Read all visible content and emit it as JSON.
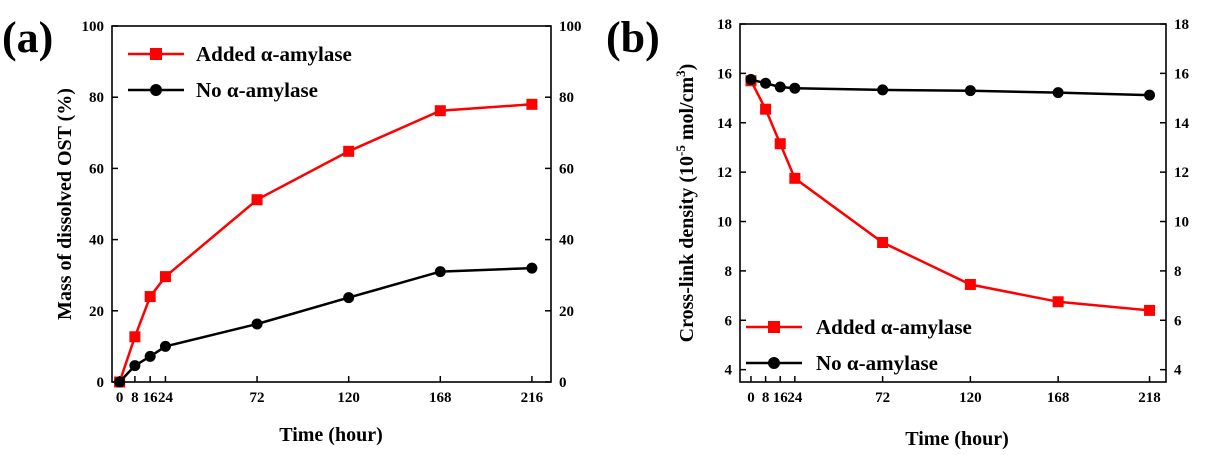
{
  "figure": {
    "panels": [
      "(a)",
      "(b)"
    ]
  },
  "chart_data": [
    {
      "panel": "(a)",
      "type": "line",
      "x": [
        0,
        8,
        16,
        24,
        72,
        120,
        168,
        216
      ],
      "xticks": [
        0,
        8,
        16,
        24,
        72,
        120,
        168,
        216
      ],
      "xlim": [
        -4,
        226
      ],
      "ylim": [
        0,
        100
      ],
      "yticks": [
        0,
        20,
        40,
        60,
        80,
        100
      ],
      "right_yticks": [
        0,
        20,
        40,
        60,
        80,
        100
      ],
      "xlabel": "Time (hour)",
      "ylabel": "Mass of dissolved OST (%)",
      "legend_position": "top-left",
      "grid": false,
      "series": [
        {
          "name": "Added α-amylase",
          "color": "#ff0000",
          "marker": "square",
          "values": [
            0,
            12.7,
            24.0,
            29.6,
            51.2,
            64.8,
            76.2,
            78.0
          ]
        },
        {
          "name": "No α-amylase",
          "color": "#000000",
          "marker": "circle",
          "values": [
            0,
            4.6,
            7.2,
            10.0,
            16.3,
            23.7,
            31.0,
            32.0
          ]
        }
      ]
    },
    {
      "panel": "(b)",
      "type": "line",
      "x": [
        0,
        8,
        16,
        24,
        72,
        120,
        168,
        218
      ],
      "xticks": [
        0,
        8,
        16,
        24,
        72,
        120,
        168,
        218
      ],
      "xlim": [
        -6,
        227
      ],
      "ylim": [
        3.5,
        18
      ],
      "yticks": [
        4,
        6,
        8,
        10,
        12,
        14,
        16,
        18
      ],
      "right_yticks": [
        4,
        6,
        8,
        10,
        12,
        14,
        16,
        18
      ],
      "xlabel": "Time (hour)",
      "ylabel_prefix": "Cross-link density (10",
      "ylabel_exp": "-5",
      "ylabel_mid": " mol/cm",
      "ylabel_exp2": "3",
      "ylabel_suffix": ")",
      "legend_position": "bottom-left",
      "grid": false,
      "series": [
        {
          "name": "Added α-amylase",
          "color": "#ff0000",
          "marker": "square",
          "values": [
            15.7,
            14.55,
            13.15,
            11.75,
            9.15,
            7.45,
            6.75,
            6.4
          ]
        },
        {
          "name": "No α-amylase",
          "color": "#000000",
          "marker": "circle",
          "values": [
            15.75,
            15.6,
            15.45,
            15.4,
            15.33,
            15.3,
            15.22,
            15.12
          ]
        }
      ]
    }
  ]
}
